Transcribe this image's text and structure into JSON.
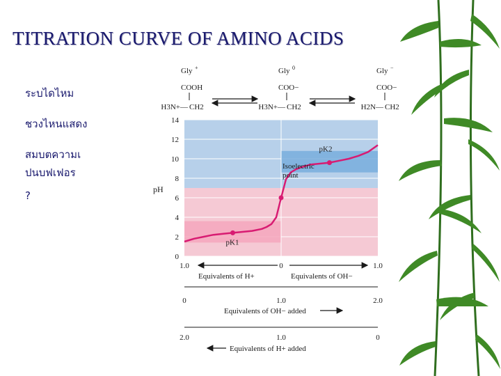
{
  "slide": {
    "title": "TITRATION  CURVE  OF  AMINO  ACIDS",
    "notes": [
      "ระบไดไหม",
      "ชวงไหนแสดง",
      "สมบตความเ",
      "ปนบฟเฟอร",
      "?"
    ]
  },
  "species": [
    {
      "name": "Gly",
      "charge": "+",
      "top": "COOH",
      "left": "H3N+",
      "right": "CH2"
    },
    {
      "name": "Gly",
      "charge": "0",
      "top": "COO−",
      "left": "H3N+",
      "right": "CH2"
    },
    {
      "name": "Gly",
      "charge": "−",
      "top": "COO−",
      "left": "H2N",
      "right": "CH2"
    }
  ],
  "chart_data": {
    "type": "line",
    "ylabel": "pH",
    "ylim": [
      0,
      14
    ],
    "yticks": [
      0,
      2,
      4,
      6,
      8,
      10,
      12,
      14
    ],
    "xlim": [
      0,
      2
    ],
    "x": [
      0.0,
      0.1,
      0.2,
      0.3,
      0.4,
      0.5,
      0.6,
      0.7,
      0.8,
      0.85,
      0.9,
      0.95,
      1.0,
      1.05,
      1.1,
      1.15,
      1.2,
      1.3,
      1.4,
      1.5,
      1.6,
      1.7,
      1.8,
      1.9,
      2.0
    ],
    "series": [
      {
        "values": [
          1.5,
          1.8,
          2.0,
          2.2,
          2.3,
          2.4,
          2.5,
          2.6,
          2.8,
          3.0,
          3.3,
          4.0,
          6.0,
          7.9,
          8.6,
          8.9,
          9.1,
          9.4,
          9.5,
          9.6,
          9.8,
          10.0,
          10.3,
          10.7,
          11.4
        ]
      }
    ],
    "points": [
      {
        "x": 0.5,
        "y": 2.4,
        "label": "pK1"
      },
      {
        "x": 1.0,
        "y": 6.0,
        "label": "Isoelectric point"
      },
      {
        "x": 1.5,
        "y": 9.6,
        "label": "pK2"
      }
    ],
    "bands": [
      {
        "from": 1.4,
        "to": 3.6,
        "x0": 0,
        "x1": 1,
        "color": "#f4a7bd"
      },
      {
        "from": 8.6,
        "to": 10.8,
        "x0": 1,
        "x1": 2,
        "color": "#79aedd"
      }
    ],
    "axes": [
      {
        "ticks": [
          "1.0",
          "0",
          "1.0"
        ],
        "left": "Equivalents of H+",
        "right": "Equivalents of OH−"
      },
      {
        "ticks": [
          "0",
          "1.0",
          "2.0"
        ],
        "label": "Equivalents of OH− added"
      },
      {
        "ticks": [
          "2.0",
          "1.0",
          "0"
        ],
        "label": "Equivalents of H+ added"
      }
    ],
    "colors": {
      "curve": "#d81b72",
      "upper_bg": "#b7d0ea",
      "lower_bg": "#f5c9d4",
      "axis_text": "#1a1a1a"
    }
  }
}
